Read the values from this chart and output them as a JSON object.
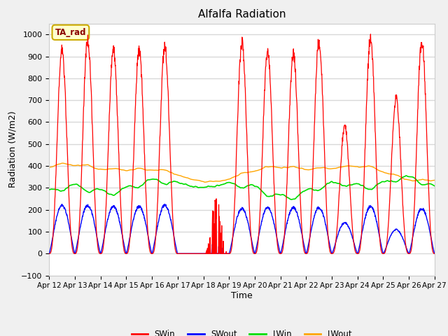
{
  "title": "Alfalfa Radiation",
  "xlabel": "Time",
  "ylabel": "Radiation (W/m2)",
  "ylim": [
    -100,
    1050
  ],
  "xlim": [
    0,
    360
  ],
  "background_color": "#f0f0f0",
  "plot_bg_color": "#ffffff",
  "grid_color": "#d8d8d8",
  "colors": {
    "SWin": "red",
    "SWout": "blue",
    "LWin": "#00dd00",
    "LWout": "orange"
  },
  "legend_label": "TA_rad",
  "xtick_labels": [
    "Apr 12",
    "Apr 13",
    "Apr 14",
    "Apr 15",
    "Apr 16",
    "Apr 17",
    "Apr 18",
    "Apr 19",
    "Apr 20",
    "Apr 21",
    "Apr 22",
    "Apr 23",
    "Apr 24",
    "Apr 25",
    "Apr 26",
    "Apr 27"
  ],
  "xtick_positions": [
    0,
    24,
    48,
    72,
    96,
    120,
    144,
    168,
    192,
    216,
    240,
    264,
    288,
    312,
    336,
    360
  ],
  "n_days": 15,
  "SWin_peaks": [
    930,
    980,
    930,
    930,
    940,
    0,
    300,
    960,
    920,
    910,
    970,
    580,
    980,
    710,
    970
  ],
  "SWout_peaks": [
    220,
    220,
    215,
    215,
    220,
    0,
    65,
    205,
    210,
    210,
    210,
    140,
    215,
    110,
    205
  ],
  "LWin_base": 310,
  "LWout_base": 370,
  "title_fontsize": 11,
  "label_fontsize": 9,
  "tick_fontsize": 8
}
